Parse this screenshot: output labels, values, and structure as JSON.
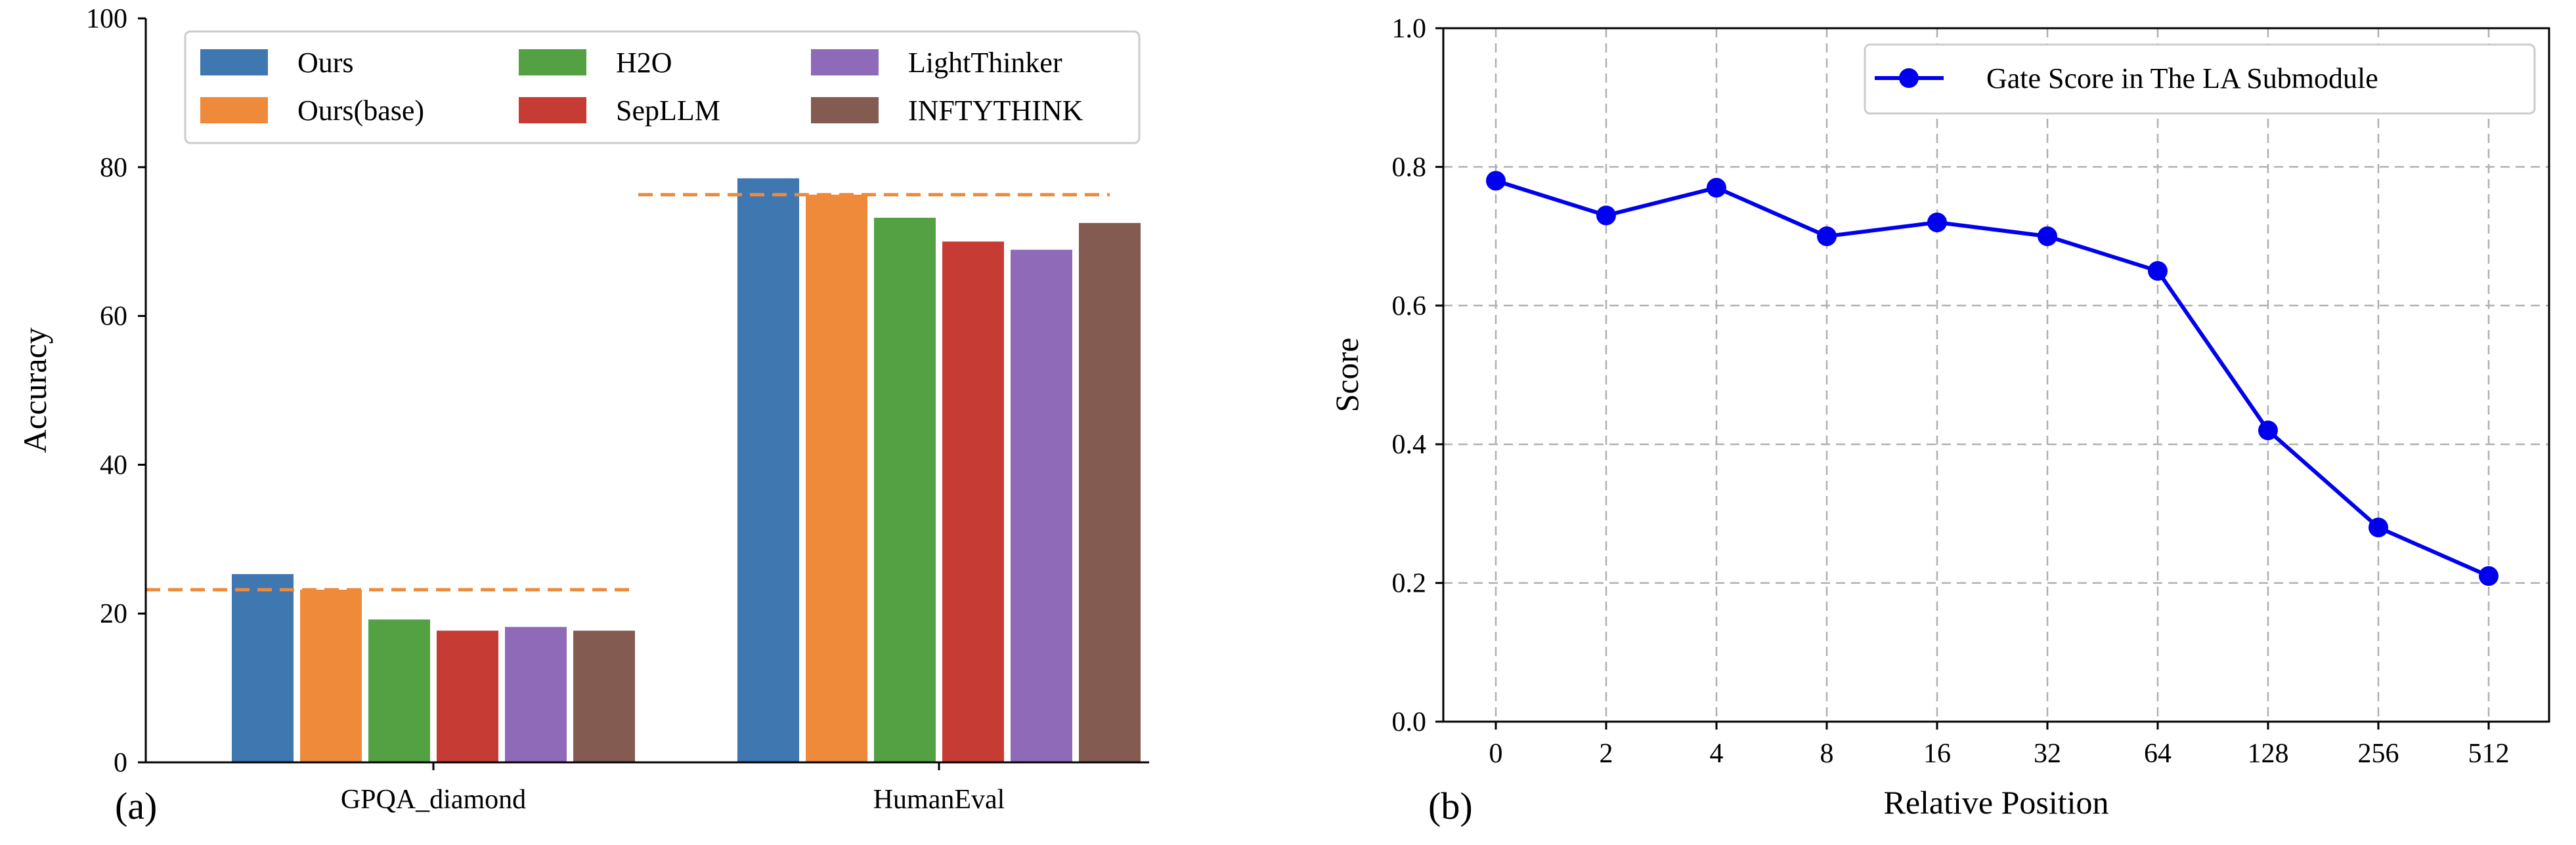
{
  "chart_data": [
    {
      "type": "bar",
      "panel_label": "(a)",
      "categories": [
        "GPQA_diamond",
        "HumanEval"
      ],
      "series": [
        {
          "name": "Ours",
          "color": "#3f77b0",
          "values": [
            25.3,
            78.5
          ]
        },
        {
          "name": "Ours(base)",
          "color": "#ee8a3a",
          "values": [
            23.2,
            76.3
          ]
        },
        {
          "name": "H2O",
          "color": "#54a144",
          "values": [
            19.2,
            73.2
          ]
        },
        {
          "name": "SepLLM",
          "color": "#c63c35",
          "values": [
            17.7,
            70.0
          ]
        },
        {
          "name": "LightThinker",
          "color": "#8e6ab8",
          "values": [
            18.2,
            68.9
          ]
        },
        {
          "name": "INFTYTHINK",
          "color": "#845b51",
          "values": [
            17.7,
            72.5
          ]
        }
      ],
      "reference_lines": [
        {
          "series": "Ours(base)",
          "category": "GPQA_diamond",
          "value": 23.2,
          "color": "#ee8a3a",
          "style": "dashed"
        },
        {
          "series": "Ours(base)",
          "category": "HumanEval",
          "value": 76.3,
          "color": "#ee8a3a",
          "style": "dashed"
        }
      ],
      "xlabel": "",
      "ylabel": "Accuracy",
      "ylim": [
        0,
        100
      ],
      "yticks": [
        "0",
        "20",
        "40",
        "60",
        "80",
        "100"
      ],
      "legend_position": "top-center",
      "grid": false
    },
    {
      "type": "line",
      "panel_label": "(b)",
      "categories": [
        "0",
        "2",
        "4",
        "8",
        "16",
        "32",
        "64",
        "128",
        "256",
        "512"
      ],
      "series": [
        {
          "name": "Gate Score in The LA Submodule",
          "color": "#0000ee",
          "values": [
            0.78,
            0.73,
            0.77,
            0.7,
            0.72,
            0.7,
            0.65,
            0.42,
            0.28,
            0.21
          ]
        }
      ],
      "xlabel": "Relative Position",
      "ylabel": "Score",
      "ylim": [
        0.0,
        1.0
      ],
      "yticks": [
        "0.0",
        "0.2",
        "0.4",
        "0.6",
        "0.8",
        "1.0"
      ],
      "legend_position": "top-right",
      "grid": true
    }
  ]
}
